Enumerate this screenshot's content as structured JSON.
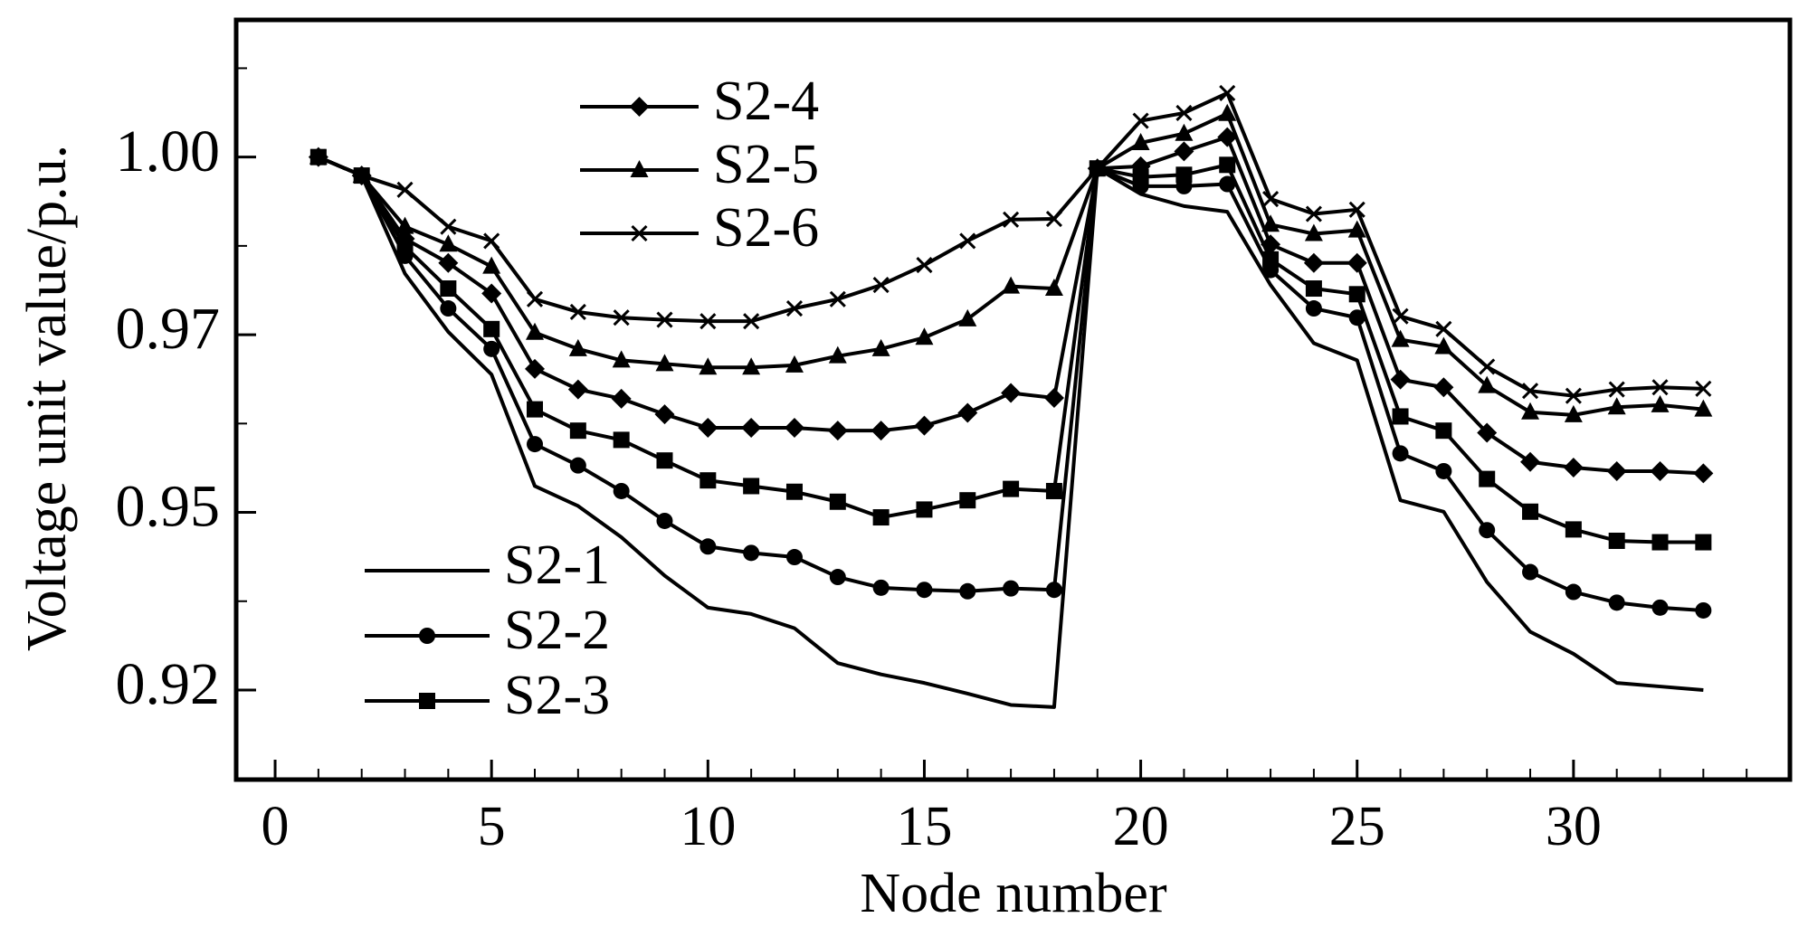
{
  "chart_data": {
    "type": "line",
    "xlabel": "Node number",
    "ylabel": "Voltage unit value/p.u.",
    "x": [
      1,
      2,
      3,
      4,
      5,
      6,
      7,
      8,
      9,
      10,
      11,
      12,
      13,
      14,
      15,
      16,
      17,
      18,
      19,
      20,
      21,
      22,
      23,
      24,
      25,
      26,
      27,
      28,
      29,
      30,
      31,
      32,
      33
    ],
    "series": [
      {
        "name": "S2-1",
        "color": "#000000",
        "marker": "none",
        "values": [
          1.0,
          0.9974,
          0.9836,
          0.9754,
          0.9694,
          0.9537,
          0.9509,
          0.9465,
          0.9411,
          0.9366,
          0.9357,
          0.9337,
          0.9288,
          0.9272,
          0.926,
          0.9245,
          0.9229,
          0.9226,
          0.9984,
          0.9948,
          0.9931,
          0.9923,
          0.982,
          0.9738,
          0.9714,
          0.9517,
          0.9501,
          0.9402,
          0.9332,
          0.9301,
          0.926,
          0.9255,
          0.925
        ]
      },
      {
        "name": "S2-2",
        "color": "#000000",
        "marker": "circle",
        "values": [
          1.0,
          0.9974,
          0.9861,
          0.9787,
          0.973,
          0.9596,
          0.9566,
          0.953,
          0.9488,
          0.9452,
          0.9443,
          0.9437,
          0.9409,
          0.9394,
          0.9391,
          0.9389,
          0.9393,
          0.9391,
          0.9984,
          0.9959,
          0.9959,
          0.9962,
          0.9841,
          0.9787,
          0.9774,
          0.9583,
          0.9558,
          0.9475,
          0.9416,
          0.9388,
          0.9373,
          0.9366,
          0.9362
        ]
      },
      {
        "name": "S2-3",
        "color": "#000000",
        "marker": "square",
        "values": [
          1.0,
          0.9974,
          0.9874,
          0.9815,
          0.9758,
          0.9645,
          0.9615,
          0.9602,
          0.9573,
          0.9545,
          0.9537,
          0.9529,
          0.9515,
          0.9493,
          0.9504,
          0.9517,
          0.9533,
          0.953,
          0.9984,
          0.9972,
          0.9975,
          0.9989,
          0.9856,
          0.9815,
          0.9807,
          0.9635,
          0.9615,
          0.9547,
          0.9501,
          0.9476,
          0.946,
          0.9458,
          0.9458
        ]
      },
      {
        "name": "S2-4",
        "color": "#000000",
        "marker": "diamond",
        "values": [
          1.0,
          0.9974,
          0.9885,
          0.9851,
          0.9808,
          0.9702,
          0.9673,
          0.966,
          0.9638,
          0.9619,
          0.9619,
          0.9619,
          0.9615,
          0.9615,
          0.9622,
          0.964,
          0.9668,
          0.9661,
          0.9984,
          0.9987,
          1.0008,
          1.0028,
          0.9877,
          0.9851,
          0.9851,
          0.9687,
          0.9676,
          0.9612,
          0.9571,
          0.9563,
          0.9558,
          0.9558,
          0.9555
        ]
      },
      {
        "name": "S2-5",
        "color": "#000000",
        "marker": "triangle",
        "values": [
          1.0,
          0.9974,
          0.9902,
          0.9877,
          0.9846,
          0.9753,
          0.973,
          0.9714,
          0.9709,
          0.9704,
          0.9704,
          0.9707,
          0.972,
          0.973,
          0.9746,
          0.9772,
          0.9818,
          0.9815,
          0.9984,
          1.002,
          1.0033,
          1.0061,
          0.9905,
          0.9892,
          0.9897,
          0.9743,
          0.9733,
          0.9678,
          0.9641,
          0.9637,
          0.9648,
          0.9651,
          0.9645
        ]
      },
      {
        "name": "S2-6",
        "color": "#000000",
        "marker": "x",
        "values": [
          1.0,
          0.9974,
          0.9954,
          0.9902,
          0.9882,
          0.98,
          0.9782,
          0.9774,
          0.9771,
          0.9769,
          0.9769,
          0.9787,
          0.98,
          0.982,
          0.9848,
          0.9882,
          0.9912,
          0.9913,
          0.9984,
          1.0051,
          1.0062,
          1.009,
          0.9941,
          0.992,
          0.9926,
          0.9776,
          0.9758,
          0.9705,
          0.9671,
          0.9664,
          0.9673,
          0.9676,
          0.9674
        ]
      }
    ],
    "xlim": [
      -0.9,
      35
    ],
    "ylim": [
      0.9124,
      1.0193
    ],
    "xticks": [
      0,
      5,
      10,
      15,
      20,
      25,
      30
    ],
    "xminorticks": [
      1,
      2,
      3,
      4,
      6,
      7,
      8,
      9,
      11,
      12,
      13,
      14,
      16,
      17,
      18,
      19,
      21,
      22,
      23,
      24,
      26,
      27,
      28,
      29,
      31,
      32,
      33,
      34
    ],
    "yticks": [
      {
        "value": 0.925,
        "label": "0.92"
      },
      {
        "value": 0.95,
        "label": "0.95"
      },
      {
        "value": 0.975,
        "label": "0.97"
      },
      {
        "value": 1.0,
        "label": "1.00"
      }
    ],
    "yminorticks": [
      0.9375,
      0.9625,
      0.9875,
      1.0125
    ],
    "grid": false
  }
}
